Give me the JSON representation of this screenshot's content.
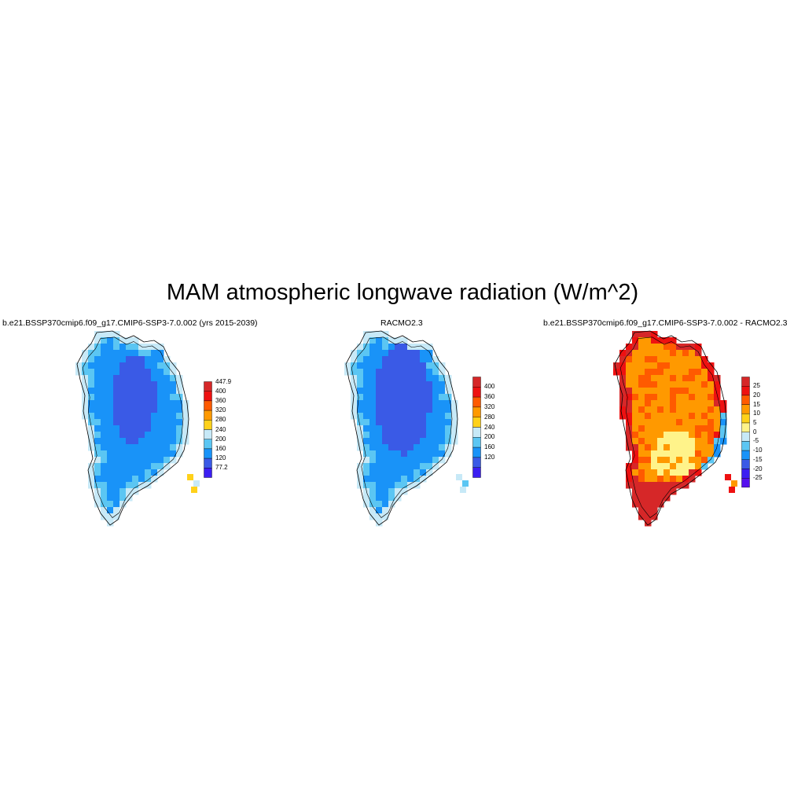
{
  "figure": {
    "title": "MAM atmospheric longwave radiation (W/m^2)"
  },
  "panels": [
    {
      "id": "model",
      "title": "b.e21.BSSP370cmip6.f09_g17.CMIP6-SSP3-7.0.002 (yrs 2015-2039)",
      "colorbar": {
        "labels": [
          "447.9",
          "400",
          "360",
          "320",
          "280",
          "240",
          "200",
          "160",
          "120",
          "77.2"
        ],
        "colors": [
          "#d62728",
          "#ee1111",
          "#ff5a00",
          "#ff9900",
          "#ffd11a",
          "#c7e9f7",
          "#5bc6f3",
          "#1993f8",
          "#3a5ae6",
          "#3b1ef2"
        ]
      },
      "dominant_colors": {
        "interior": "#3a5ae6",
        "main": "#1993f8",
        "edge": "#5bc6f3",
        "coast": "#c7e9f7",
        "south_tip": "#ffd11a"
      }
    },
    {
      "id": "obs",
      "title": "RACMO2.3",
      "colorbar": {
        "labels": [
          "400",
          "360",
          "320",
          "280",
          "240",
          "200",
          "160",
          "120"
        ],
        "colors": [
          "#d62728",
          "#ee1111",
          "#ff5a00",
          "#ff9900",
          "#ffd11a",
          "#c7e9f7",
          "#5bc6f3",
          "#1993f8",
          "#3a5ae6",
          "#3b1ef2"
        ]
      },
      "dominant_colors": {
        "interior": "#3a5ae6",
        "main": "#1993f8",
        "edge": "#5bc6f3",
        "coast": "#c7e9f7"
      }
    },
    {
      "id": "diff",
      "title": "b.e21.BSSP370cmip6.f09_g17.CMIP6-SSP3-7.0.002 - RACMO2.3",
      "colorbar": {
        "labels": [
          "25",
          "20",
          "15",
          "10",
          "5",
          "0",
          "-5",
          "-10",
          "-15",
          "-20",
          "-25"
        ],
        "colors": [
          "#d62728",
          "#ee1111",
          "#ff5a00",
          "#ff9900",
          "#ffd11a",
          "#fff38a",
          "#c7e9f7",
          "#5bc6f3",
          "#1993f8",
          "#3a5ae6",
          "#3b1ef2",
          "#5510ee"
        ]
      },
      "dominant_colors": {
        "interior": "#ff9900",
        "center": "#fff38a",
        "coast": "#ee1111",
        "south": "#d62728",
        "east_coast": "#5bc6f3"
      }
    }
  ]
}
